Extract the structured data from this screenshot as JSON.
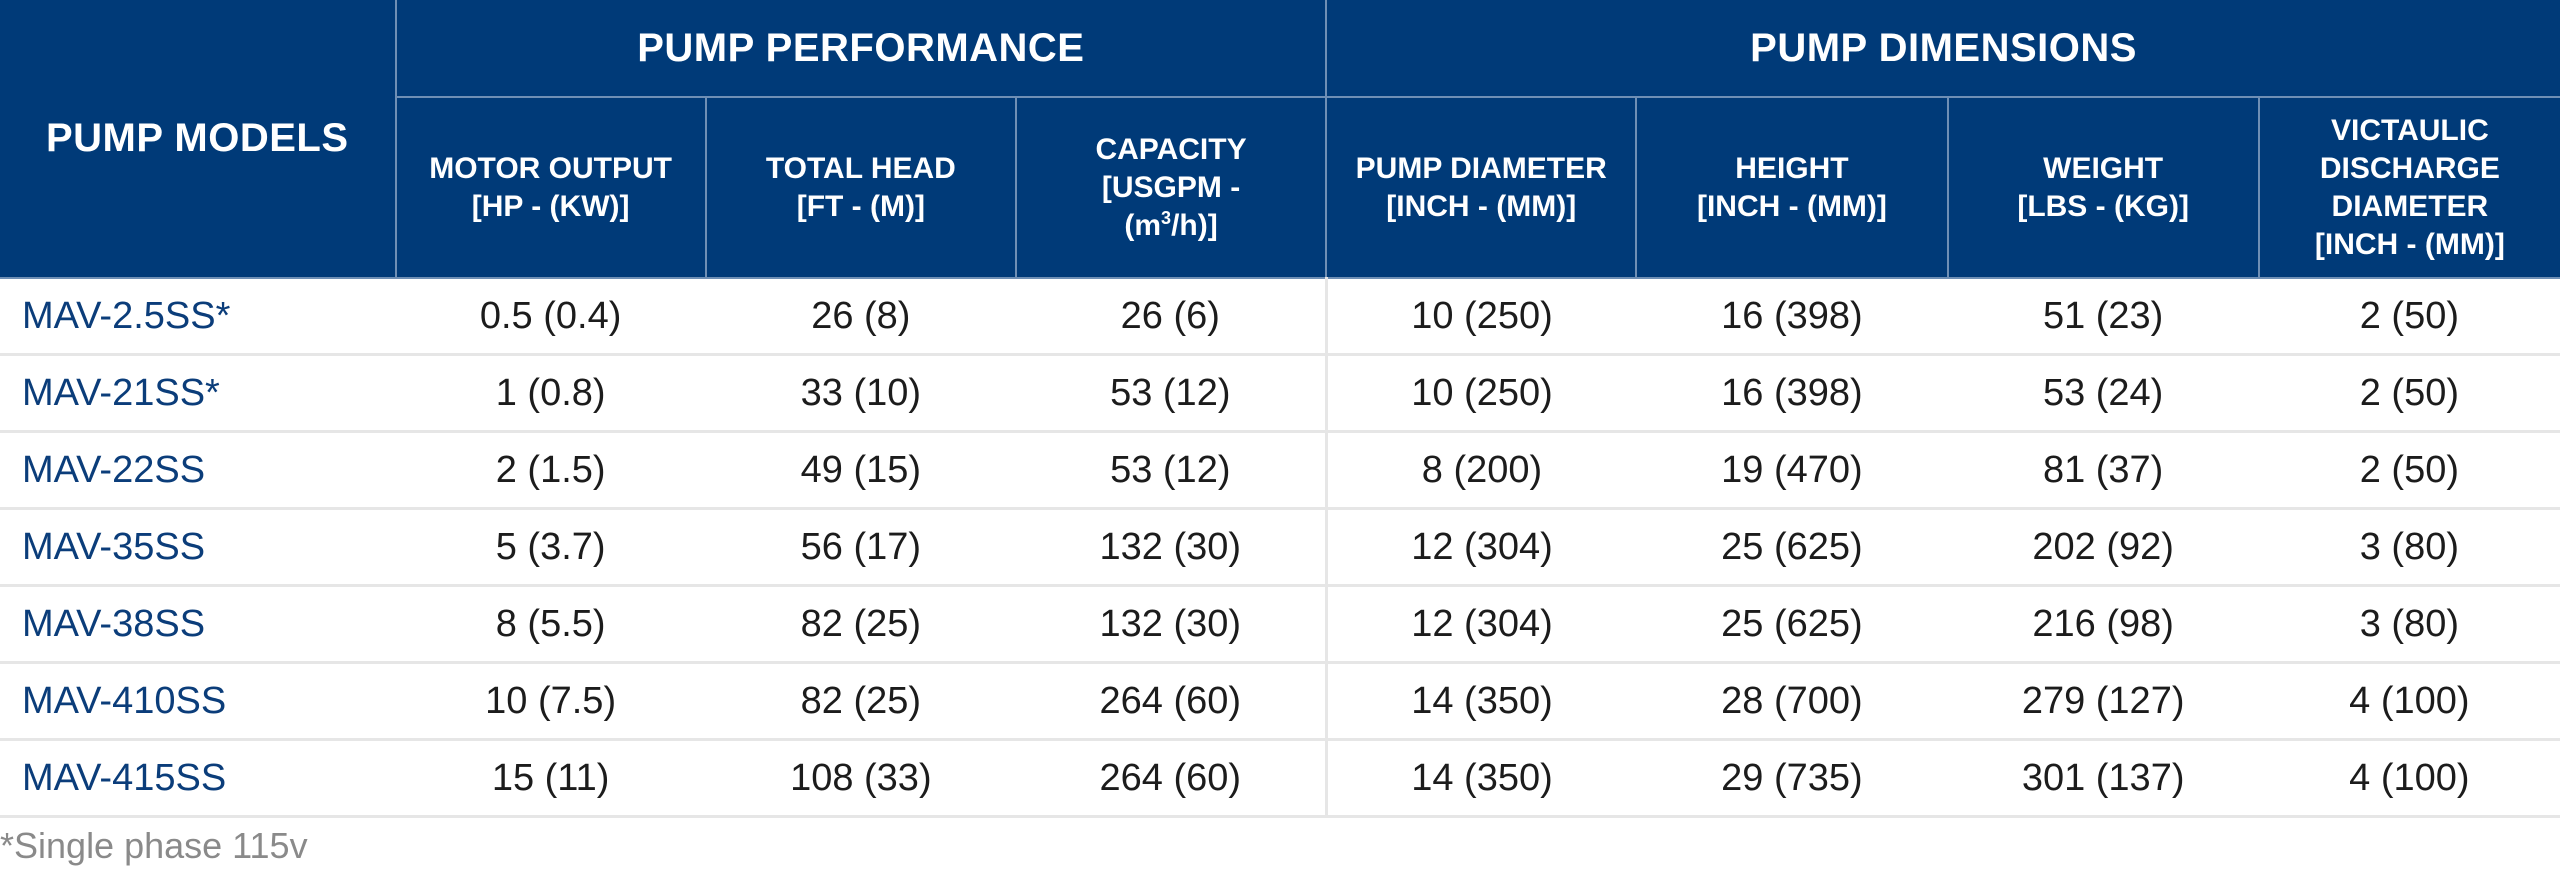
{
  "header": {
    "models_label": "PUMP MODELS",
    "performance_label": "PUMP PERFORMANCE",
    "dimensions_label": "PUMP DIMENSIONS",
    "columns": [
      {
        "line1": "MOTOR OUTPUT",
        "line2": "[HP - (KW)]"
      },
      {
        "line1": "TOTAL HEAD",
        "line2": "[FT - (M)]"
      },
      {
        "line1": "CAPACITY",
        "line2": "[USGPM -",
        "line3a": "(m",
        "line3sup": "3",
        "line3b": "/h)]"
      },
      {
        "line1": "PUMP DIAMETER",
        "line2": "[INCH - (MM)]"
      },
      {
        "line1": "HEIGHT",
        "line2": "[INCH - (MM)]"
      },
      {
        "line1": "WEIGHT",
        "line2": "[LBS - (KG)]"
      },
      {
        "line1": "VICTAULIC",
        "line2": "DISCHARGE",
        "line3": "DIAMETER",
        "line4": "[INCH - (MM)]"
      }
    ]
  },
  "rows": [
    {
      "model": "MAV-2.5SS*",
      "motor": "0.5 (0.4)",
      "head": "26 (8)",
      "capacity": "26 (6)",
      "diameter": "10 (250)",
      "height": "16 (398)",
      "weight": "51 (23)",
      "discharge": "2 (50)"
    },
    {
      "model": "MAV-21SS*",
      "motor": "1 (0.8)",
      "head": "33 (10)",
      "capacity": "53 (12)",
      "diameter": "10 (250)",
      "height": "16 (398)",
      "weight": "53 (24)",
      "discharge": "2 (50)"
    },
    {
      "model": "MAV-22SS",
      "motor": "2 (1.5)",
      "head": "49 (15)",
      "capacity": "53 (12)",
      "diameter": "8 (200)",
      "height": "19 (470)",
      "weight": "81 (37)",
      "discharge": "2 (50)"
    },
    {
      "model": "MAV-35SS",
      "motor": "5 (3.7)",
      "head": "56 (17)",
      "capacity": "132 (30)",
      "diameter": "12 (304)",
      "height": "25 (625)",
      "weight": "202 (92)",
      "discharge": "3 (80)"
    },
    {
      "model": "MAV-38SS",
      "motor": "8 (5.5)",
      "head": "82 (25)",
      "capacity": "132 (30)",
      "diameter": "12 (304)",
      "height": "25 (625)",
      "weight": "216 (98)",
      "discharge": "3 (80)"
    },
    {
      "model": "MAV-410SS",
      "motor": "10 (7.5)",
      "head": "82 (25)",
      "capacity": "264 (60)",
      "diameter": "14 (350)",
      "height": "28 (700)",
      "weight": "279 (127)",
      "discharge": "4 (100)"
    },
    {
      "model": "MAV-415SS",
      "motor": "15 (11)",
      "head": "108 (33)",
      "capacity": "264 (60)",
      "diameter": "14 (350)",
      "height": "29 (735)",
      "weight": "301 (137)",
      "discharge": "4 (100)"
    }
  ],
  "footnote": "*Single phase 115v",
  "colors": {
    "header_bg": "#003a78",
    "model_text": "#0b3d7a",
    "footnote_text": "#8a8a8a"
  }
}
